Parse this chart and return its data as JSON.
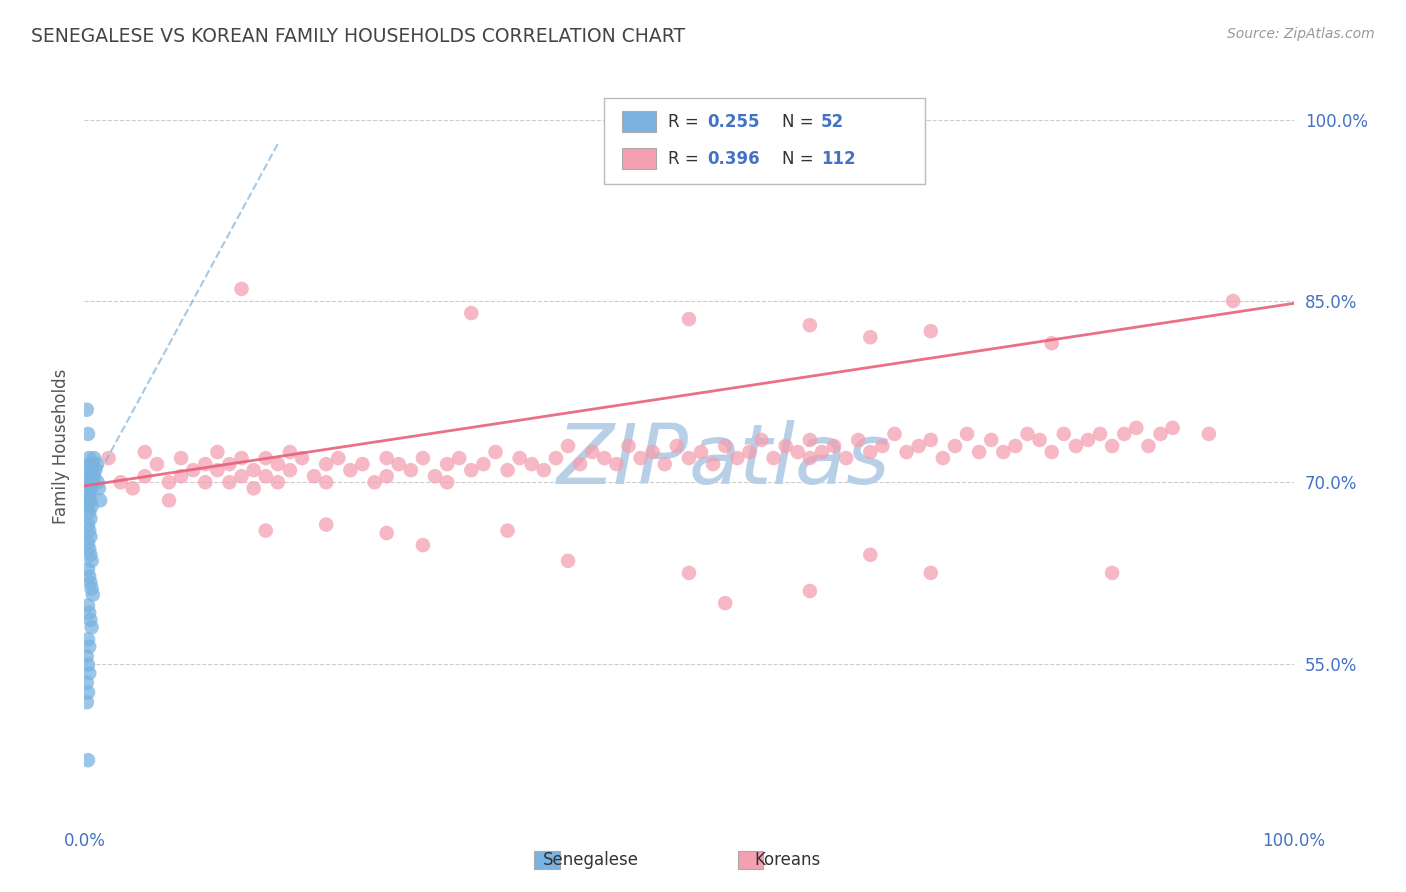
{
  "title": "SENEGALESE VS KOREAN FAMILY HOUSEHOLDS CORRELATION CHART",
  "source": "Source: ZipAtlas.com",
  "ylabel": "Family Households",
  "xlim": [
    0.0,
    1.0
  ],
  "ylim": [
    0.42,
    1.04
  ],
  "yticks": [
    0.55,
    0.7,
    0.85,
    1.0
  ],
  "ytick_labels": [
    "55.0%",
    "70.0%",
    "85.0%",
    "100.0%"
  ],
  "xticks": [
    0.0,
    0.25,
    0.5,
    0.75,
    1.0
  ],
  "xtick_labels": [
    "0.0%",
    "",
    "",
    "",
    "100.0%"
  ],
  "background_color": "#ffffff",
  "grid_color": "#cccccc",
  "title_color": "#444444",
  "axis_label_color": "#555555",
  "tick_color": "#4472c4",
  "senegalese_color": "#7ab3e0",
  "korean_color": "#f4a0b0",
  "senegalese_line_color": "#7ab3e0",
  "korean_line_color": "#e8607a",
  "senegalese_scatter": [
    [
      0.002,
      0.7
    ],
    [
      0.002,
      0.685
    ],
    [
      0.003,
      0.71
    ],
    [
      0.003,
      0.695
    ],
    [
      0.003,
      0.68
    ],
    [
      0.004,
      0.72
    ],
    [
      0.004,
      0.705
    ],
    [
      0.004,
      0.69
    ],
    [
      0.004,
      0.675
    ],
    [
      0.005,
      0.715
    ],
    [
      0.005,
      0.7
    ],
    [
      0.005,
      0.685
    ],
    [
      0.005,
      0.67
    ],
    [
      0.006,
      0.71
    ],
    [
      0.006,
      0.695
    ],
    [
      0.006,
      0.68
    ],
    [
      0.007,
      0.715
    ],
    [
      0.007,
      0.7
    ],
    [
      0.008,
      0.72
    ],
    [
      0.008,
      0.705
    ],
    [
      0.009,
      0.71
    ],
    [
      0.01,
      0.715
    ],
    [
      0.011,
      0.7
    ],
    [
      0.012,
      0.695
    ],
    [
      0.013,
      0.685
    ],
    [
      0.003,
      0.665
    ],
    [
      0.004,
      0.66
    ],
    [
      0.005,
      0.655
    ],
    [
      0.003,
      0.65
    ],
    [
      0.004,
      0.645
    ],
    [
      0.005,
      0.64
    ],
    [
      0.006,
      0.635
    ],
    [
      0.003,
      0.628
    ],
    [
      0.004,
      0.622
    ],
    [
      0.005,
      0.617
    ],
    [
      0.006,
      0.612
    ],
    [
      0.007,
      0.607
    ],
    [
      0.003,
      0.598
    ],
    [
      0.004,
      0.592
    ],
    [
      0.005,
      0.586
    ],
    [
      0.006,
      0.58
    ],
    [
      0.003,
      0.57
    ],
    [
      0.004,
      0.564
    ],
    [
      0.002,
      0.556
    ],
    [
      0.003,
      0.549
    ],
    [
      0.004,
      0.542
    ],
    [
      0.002,
      0.534
    ],
    [
      0.003,
      0.526
    ],
    [
      0.002,
      0.518
    ],
    [
      0.002,
      0.76
    ],
    [
      0.003,
      0.74
    ],
    [
      0.003,
      0.47
    ]
  ],
  "korean_scatter": [
    [
      0.02,
      0.72
    ],
    [
      0.03,
      0.7
    ],
    [
      0.04,
      0.695
    ],
    [
      0.05,
      0.725
    ],
    [
      0.05,
      0.705
    ],
    [
      0.06,
      0.715
    ],
    [
      0.07,
      0.7
    ],
    [
      0.07,
      0.685
    ],
    [
      0.08,
      0.72
    ],
    [
      0.08,
      0.705
    ],
    [
      0.09,
      0.71
    ],
    [
      0.1,
      0.715
    ],
    [
      0.1,
      0.7
    ],
    [
      0.11,
      0.725
    ],
    [
      0.11,
      0.71
    ],
    [
      0.12,
      0.715
    ],
    [
      0.12,
      0.7
    ],
    [
      0.13,
      0.72
    ],
    [
      0.13,
      0.705
    ],
    [
      0.14,
      0.71
    ],
    [
      0.14,
      0.695
    ],
    [
      0.15,
      0.72
    ],
    [
      0.15,
      0.705
    ],
    [
      0.16,
      0.715
    ],
    [
      0.16,
      0.7
    ],
    [
      0.17,
      0.725
    ],
    [
      0.17,
      0.71
    ],
    [
      0.18,
      0.72
    ],
    [
      0.19,
      0.705
    ],
    [
      0.2,
      0.715
    ],
    [
      0.2,
      0.7
    ],
    [
      0.21,
      0.72
    ],
    [
      0.22,
      0.71
    ],
    [
      0.23,
      0.715
    ],
    [
      0.24,
      0.7
    ],
    [
      0.25,
      0.72
    ],
    [
      0.25,
      0.705
    ],
    [
      0.26,
      0.715
    ],
    [
      0.27,
      0.71
    ],
    [
      0.28,
      0.72
    ],
    [
      0.29,
      0.705
    ],
    [
      0.3,
      0.715
    ],
    [
      0.3,
      0.7
    ],
    [
      0.31,
      0.72
    ],
    [
      0.32,
      0.71
    ],
    [
      0.33,
      0.715
    ],
    [
      0.34,
      0.725
    ],
    [
      0.35,
      0.71
    ],
    [
      0.36,
      0.72
    ],
    [
      0.37,
      0.715
    ],
    [
      0.38,
      0.71
    ],
    [
      0.39,
      0.72
    ],
    [
      0.4,
      0.73
    ],
    [
      0.41,
      0.715
    ],
    [
      0.42,
      0.725
    ],
    [
      0.43,
      0.72
    ],
    [
      0.44,
      0.715
    ],
    [
      0.45,
      0.73
    ],
    [
      0.46,
      0.72
    ],
    [
      0.47,
      0.725
    ],
    [
      0.48,
      0.715
    ],
    [
      0.49,
      0.73
    ],
    [
      0.5,
      0.72
    ],
    [
      0.51,
      0.725
    ],
    [
      0.52,
      0.715
    ],
    [
      0.53,
      0.73
    ],
    [
      0.54,
      0.72
    ],
    [
      0.55,
      0.725
    ],
    [
      0.56,
      0.735
    ],
    [
      0.57,
      0.72
    ],
    [
      0.58,
      0.73
    ],
    [
      0.59,
      0.725
    ],
    [
      0.6,
      0.72
    ],
    [
      0.6,
      0.735
    ],
    [
      0.61,
      0.725
    ],
    [
      0.62,
      0.73
    ],
    [
      0.63,
      0.72
    ],
    [
      0.64,
      0.735
    ],
    [
      0.65,
      0.725
    ],
    [
      0.66,
      0.73
    ],
    [
      0.67,
      0.74
    ],
    [
      0.68,
      0.725
    ],
    [
      0.69,
      0.73
    ],
    [
      0.7,
      0.735
    ],
    [
      0.71,
      0.72
    ],
    [
      0.72,
      0.73
    ],
    [
      0.73,
      0.74
    ],
    [
      0.74,
      0.725
    ],
    [
      0.75,
      0.735
    ],
    [
      0.76,
      0.725
    ],
    [
      0.77,
      0.73
    ],
    [
      0.78,
      0.74
    ],
    [
      0.79,
      0.735
    ],
    [
      0.8,
      0.725
    ],
    [
      0.81,
      0.74
    ],
    [
      0.82,
      0.73
    ],
    [
      0.83,
      0.735
    ],
    [
      0.84,
      0.74
    ],
    [
      0.85,
      0.73
    ],
    [
      0.86,
      0.74
    ],
    [
      0.87,
      0.745
    ],
    [
      0.88,
      0.73
    ],
    [
      0.89,
      0.74
    ],
    [
      0.9,
      0.745
    ],
    [
      0.93,
      0.74
    ],
    [
      0.95,
      0.85
    ],
    [
      0.13,
      0.86
    ],
    [
      0.32,
      0.84
    ],
    [
      0.5,
      0.835
    ],
    [
      0.6,
      0.83
    ],
    [
      0.7,
      0.825
    ],
    [
      0.65,
      0.82
    ],
    [
      0.8,
      0.815
    ],
    [
      0.15,
      0.66
    ],
    [
      0.2,
      0.665
    ],
    [
      0.25,
      0.658
    ],
    [
      0.28,
      0.648
    ],
    [
      0.35,
      0.66
    ],
    [
      0.4,
      0.635
    ],
    [
      0.5,
      0.625
    ],
    [
      0.53,
      0.6
    ],
    [
      0.6,
      0.61
    ],
    [
      0.65,
      0.64
    ],
    [
      0.7,
      0.625
    ],
    [
      0.85,
      0.625
    ]
  ],
  "senegalese_line": [
    [
      0.0,
      0.685
    ],
    [
      0.16,
      0.98
    ]
  ],
  "korean_line": [
    [
      0.0,
      0.697
    ],
    [
      1.0,
      0.848
    ]
  ],
  "watermark_top": "ZIP",
  "watermark_bottom": "atlas",
  "watermark_color": "#b8cfe8"
}
